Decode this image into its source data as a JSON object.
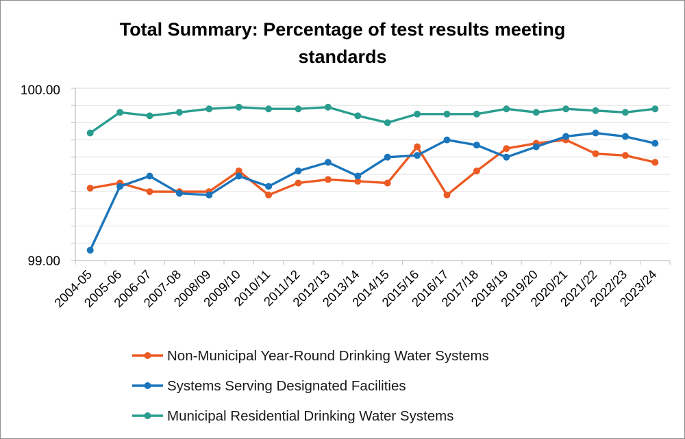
{
  "chart_data": {
    "type": "line",
    "title_lines": [
      "Total Summary: Percentage of test results meeting",
      "standards"
    ],
    "ylim": [
      99.0,
      100.0
    ],
    "y_tick_labels": [
      "99.00",
      "100.00"
    ],
    "categories": [
      "2004-05",
      "2005-06",
      "2006-07",
      "2007-08",
      "2008/09",
      "2009/10",
      "2010/11",
      "2011/12",
      "2012/13",
      "2013/14",
      "2014/15",
      "2015/16",
      "2016/17",
      "2017/18",
      "2018/19",
      "2019/20",
      "2020/21",
      "2021/22",
      "2022/23",
      "2023/24"
    ],
    "series": [
      {
        "name": "Non-Municipal Year-Round Drinking Water Systems",
        "color": "#ec5b24",
        "values": [
          99.42,
          99.45,
          99.4,
          99.4,
          99.4,
          99.52,
          99.38,
          99.45,
          99.47,
          99.46,
          99.45,
          99.66,
          99.38,
          99.52,
          99.65,
          99.68,
          99.7,
          99.62,
          99.61,
          99.57
        ]
      },
      {
        "name": "Systems Serving Designated Facilities",
        "color": "#1b75bb",
        "values": [
          99.06,
          99.43,
          99.49,
          99.39,
          99.38,
          99.49,
          99.43,
          99.52,
          99.57,
          99.49,
          99.6,
          99.61,
          99.7,
          99.67,
          99.6,
          99.66,
          99.72,
          99.74,
          99.72,
          99.68
        ]
      },
      {
        "name": "Municipal Residential Drinking Water Systems",
        "color": "#2a9d8f",
        "values": [
          99.74,
          99.86,
          99.84,
          99.86,
          99.88,
          99.89,
          99.88,
          99.88,
          99.89,
          99.84,
          99.8,
          99.85,
          99.85,
          99.85,
          99.88,
          99.86,
          99.88,
          99.87,
          99.86,
          99.88
        ]
      }
    ],
    "legend_position": "bottom",
    "grid": true
  }
}
